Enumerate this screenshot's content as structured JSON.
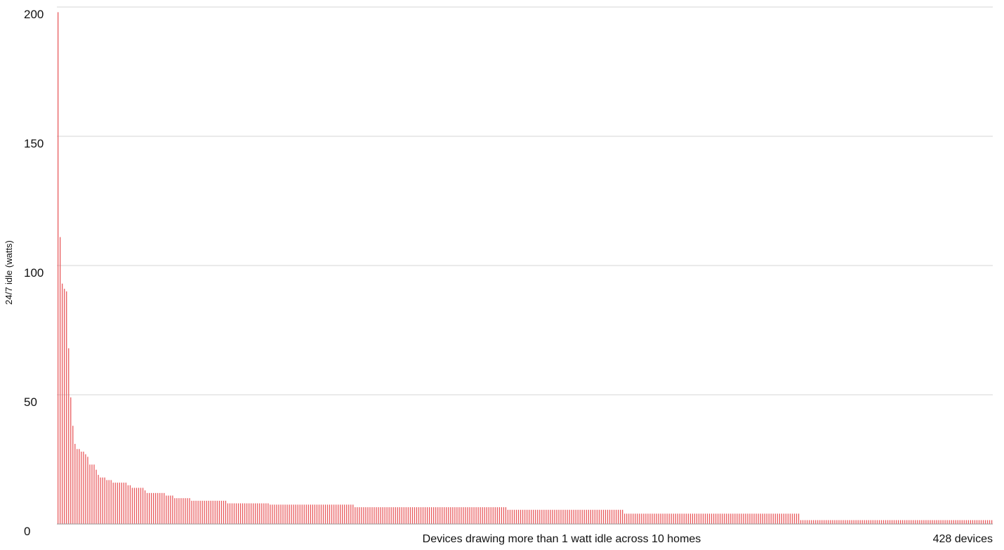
{
  "chart_data": {
    "type": "bar",
    "title": "",
    "xlabel": "Devices drawing more than 1 watt idle across 10 homes",
    "x_end_label": "428 devices",
    "ylabel": "24/7 idle (watts)",
    "ylim": [
      0,
      200
    ],
    "yticks": [
      0,
      50,
      100,
      150,
      200
    ],
    "grid": true,
    "legend": "none",
    "bar_color": "#e8575a",
    "device_count": 428,
    "values": [
      198,
      111,
      93,
      91,
      90,
      68,
      49,
      38,
      31,
      29,
      29,
      28,
      28,
      27,
      26,
      23,
      23,
      23,
      21,
      19,
      18,
      18,
      18,
      17,
      17,
      17,
      16,
      16,
      16,
      16,
      16,
      16,
      16,
      15,
      15,
      14,
      14,
      14,
      14,
      14,
      14,
      13,
      12,
      12,
      12,
      12,
      12,
      12,
      12,
      12,
      12,
      11,
      11,
      11,
      11,
      10,
      10,
      10,
      10,
      10,
      10,
      10,
      10,
      9,
      9,
      9,
      9,
      9,
      9,
      9,
      9,
      9,
      9,
      9,
      9,
      9,
      9,
      9,
      9,
      9,
      8,
      8,
      8,
      8,
      8,
      8,
      8,
      8,
      8,
      8,
      8,
      8,
      8,
      8,
      8,
      8,
      8,
      8,
      8,
      8,
      7.5,
      7.5,
      7.5,
      7.5,
      7.5,
      7.5,
      7.5,
      7.5,
      7.5,
      7.5,
      7.5,
      7.5,
      7.5,
      7.5,
      7.5,
      7.5,
      7.5,
      7.5,
      7.5,
      7.5,
      7.5,
      7.5,
      7.5,
      7.5,
      7.5,
      7.5,
      7.5,
      7.5,
      7.5,
      7.5,
      7.5,
      7.5,
      7.5,
      7.5,
      7.5,
      7.5,
      7.5,
      7.5,
      7.5,
      7.5,
      6.5,
      6.5,
      6.5,
      6.5,
      6.5,
      6.5,
      6.5,
      6.5,
      6.5,
      6.5,
      6.5,
      6.5,
      6.5,
      6.5,
      6.5,
      6.5,
      6.5,
      6.5,
      6.5,
      6.5,
      6.5,
      6.5,
      6.5,
      6.5,
      6.5,
      6.5,
      6.5,
      6.5,
      6.5,
      6.5,
      6.5,
      6.5,
      6.5,
      6.5,
      6.5,
      6.5,
      6.5,
      6.5,
      6.5,
      6.5,
      6.5,
      6.5,
      6.5,
      6.5,
      6.5,
      6.5,
      6.5,
      6.5,
      6.5,
      6.5,
      6.5,
      6.5,
      6.5,
      6.5,
      6.5,
      6.5,
      6.5,
      6.5,
      6.5,
      6.5,
      6.5,
      6.5,
      6.5,
      6.5,
      6.5,
      6.5,
      6.5,
      6.5,
      6.5,
      6.5,
      6.5,
      6.5,
      5.5,
      5.5,
      5.5,
      5.5,
      5.5,
      5.5,
      5.5,
      5.5,
      5.5,
      5.5,
      5.5,
      5.5,
      5.5,
      5.5,
      5.5,
      5.5,
      5.5,
      5.5,
      5.5,
      5.5,
      5.5,
      5.5,
      5.5,
      5.5,
      5.5,
      5.5,
      5.5,
      5.5,
      5.5,
      5.5,
      5.5,
      5.5,
      5.5,
      5.5,
      5.5,
      5.5,
      5.5,
      5.5,
      5.5,
      5.5,
      5.5,
      5.5,
      5.5,
      5.5,
      5.5,
      5.5,
      5.5,
      5.5,
      5.5,
      5.5,
      5.5,
      5.5,
      5.5,
      5.5,
      5.5,
      4,
      4,
      4,
      4,
      4,
      4,
      4,
      4,
      4,
      4,
      4,
      4,
      4,
      4,
      4,
      4,
      4,
      4,
      4,
      4,
      4,
      4,
      4,
      4,
      4,
      4,
      4,
      4,
      4,
      4,
      4,
      4,
      4,
      4,
      4,
      4,
      4,
      4,
      4,
      4,
      4,
      4,
      4,
      4,
      4,
      4,
      4,
      4,
      4,
      4,
      4,
      4,
      4,
      4,
      4,
      4,
      4,
      4,
      4,
      4,
      4,
      4,
      4,
      4,
      4,
      4,
      4,
      4,
      4,
      4,
      4,
      4,
      4,
      4,
      4,
      4,
      4,
      4,
      4,
      4,
      4,
      4,
      4,
      1.5,
      1.5,
      1.5,
      1.5,
      1.5,
      1.5,
      1.5,
      1.5,
      1.5,
      1.5,
      1.5,
      1.5,
      1.5,
      1.5,
      1.5,
      1.5,
      1.5,
      1.5,
      1.5,
      1.5,
      1.5,
      1.5,
      1.5,
      1.5,
      1.5,
      1.5,
      1.5,
      1.5,
      1.5,
      1.5,
      1.5,
      1.5,
      1.5,
      1.5,
      1.5,
      1.5,
      1.5,
      1.5,
      1.5,
      1.5,
      1.5,
      1.5,
      1.5,
      1.5,
      1.5,
      1.5,
      1.5,
      1.5,
      1.5,
      1.5,
      1.5,
      1.5,
      1.5,
      1.5,
      1.5,
      1.5,
      1.5,
      1.5,
      1.5,
      1.5,
      1.5,
      1.5,
      1.5,
      1.5,
      1.5,
      1.5,
      1.5,
      1.5,
      1.5,
      1.5,
      1.5,
      1.5,
      1.5,
      1.5,
      1.5,
      1.5,
      1.5,
      1.5,
      1.5,
      1.5,
      1.5,
      1.5,
      1.5,
      1.5,
      1.5,
      1.5,
      1.5,
      1.5,
      1.5,
      1.5,
      1.5
    ]
  }
}
